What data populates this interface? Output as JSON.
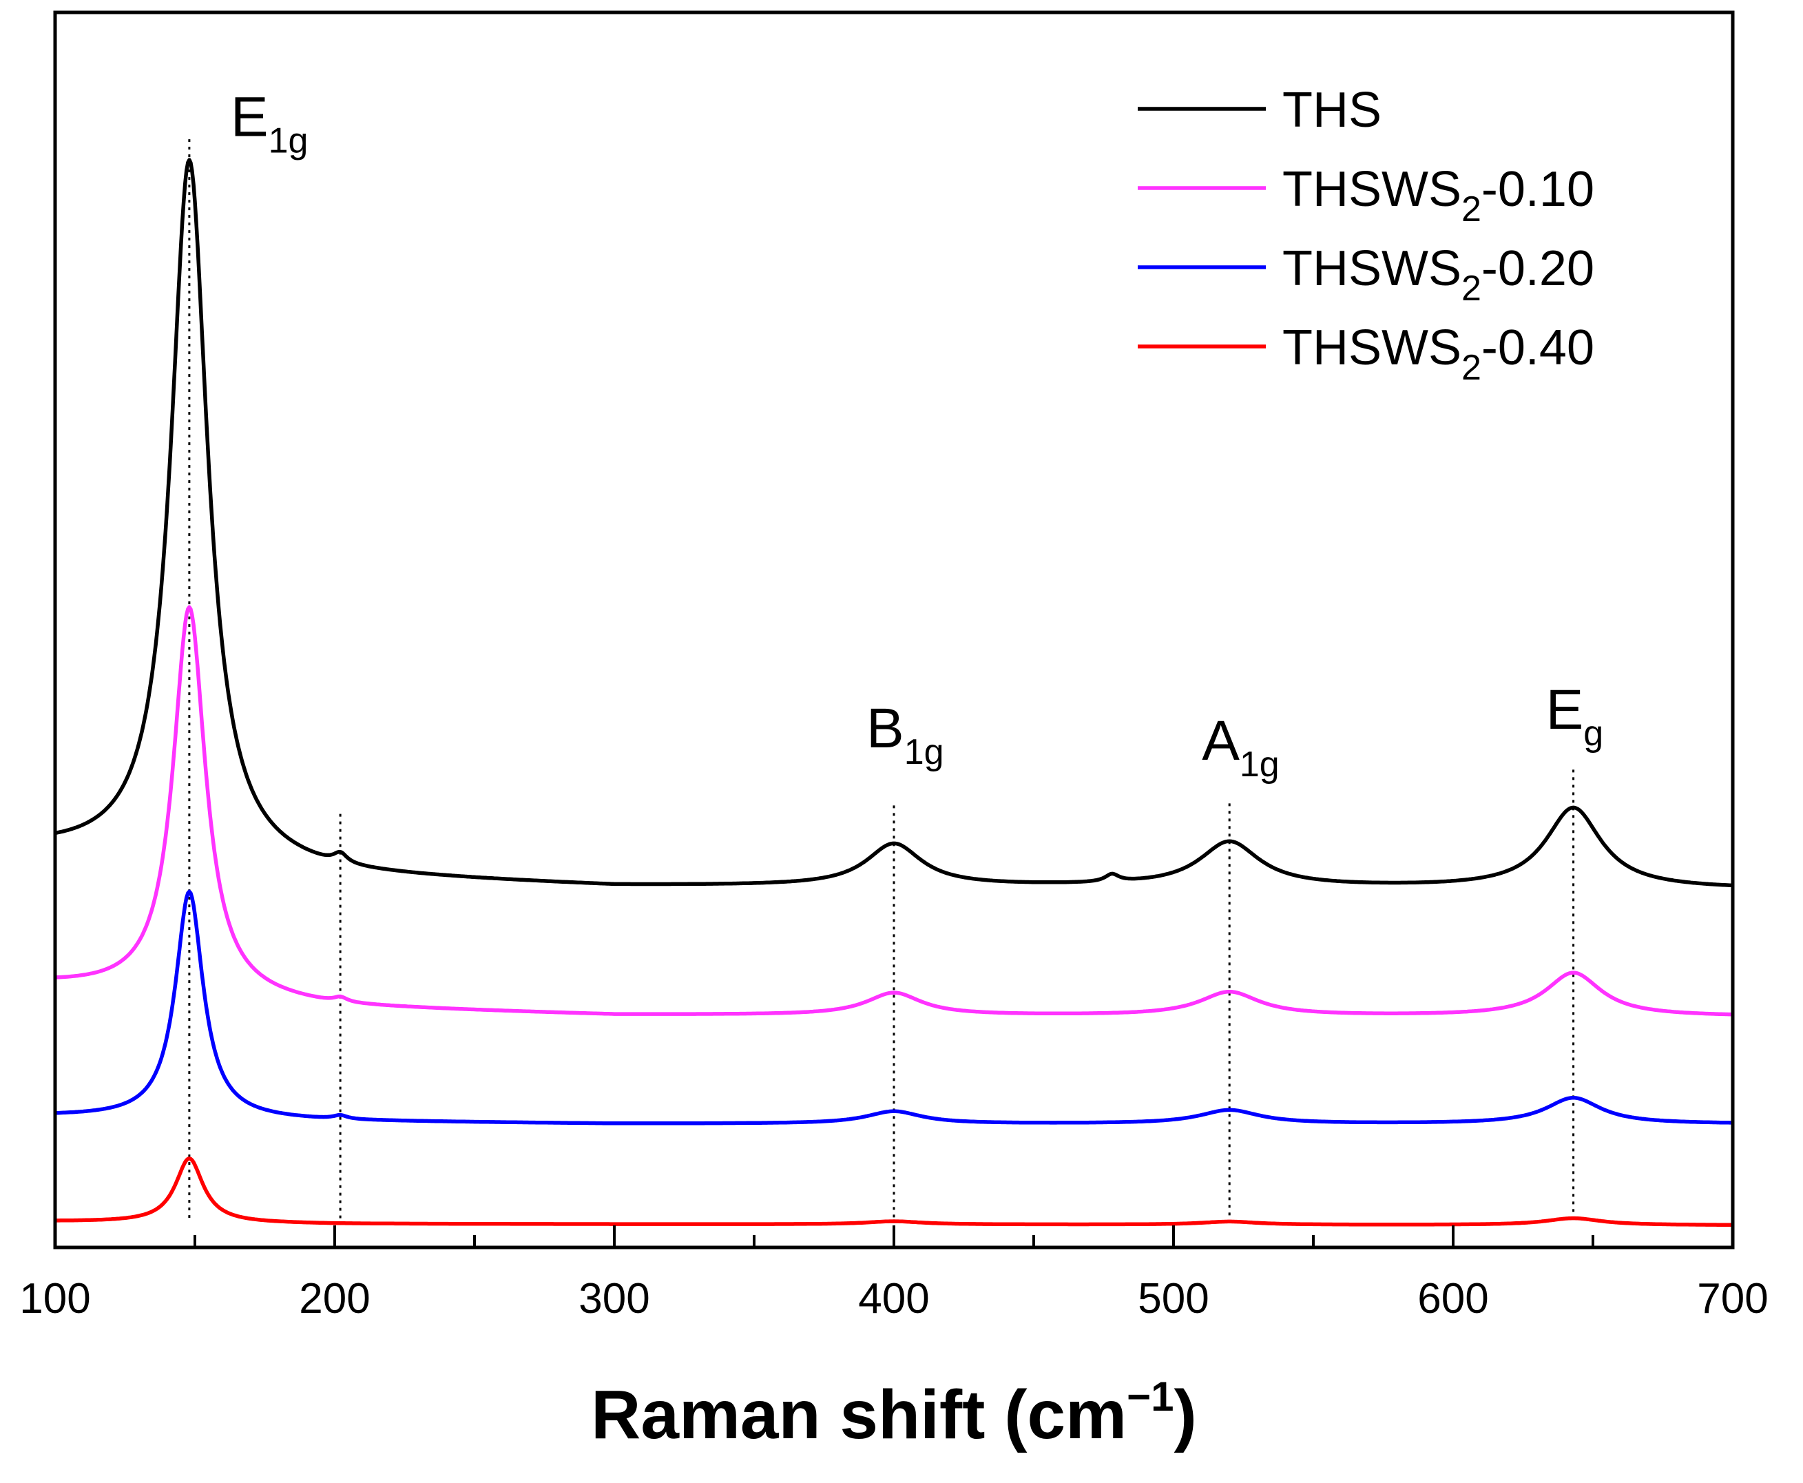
{
  "chart_data": {
    "type": "line",
    "title": "",
    "xlabel_main": "Raman shift (cm",
    "xlabel_sup": "−1",
    "xlabel_close": ")",
    "ylabel": "",
    "xlim": [
      100,
      700
    ],
    "ylim": [
      0,
      100
    ],
    "x_ticks": [
      100,
      200,
      300,
      400,
      500,
      600,
      700
    ],
    "x_tick_labels": [
      "100",
      "200",
      "300",
      "400",
      "500",
      "600",
      "700"
    ],
    "legend_position": "top-right",
    "series": [
      {
        "name": "THS",
        "label_main": "THS",
        "label_sub": "",
        "label_tail": "",
        "color": "#000000",
        "baseline": [
          [
            100,
            32.0
          ],
          [
            200,
            30.0
          ],
          [
            300,
            29.2
          ],
          [
            480,
            29.2
          ],
          [
            700,
            29.0
          ]
        ],
        "peaks": [
          [
            148,
            57.0,
            8
          ],
          [
            202,
            0.8,
            3
          ],
          [
            400,
            3.4,
            12
          ],
          [
            478,
            0.6,
            3
          ],
          [
            520,
            3.6,
            13
          ],
          [
            643,
            6.5,
            12
          ]
        ]
      },
      {
        "name": "THSWS2-0.10",
        "label_main": "THSWS",
        "label_sub": "2",
        "label_tail": "-0.10",
        "color": "#ff33ff",
        "baseline": [
          [
            100,
            21.2
          ],
          [
            200,
            19.4
          ],
          [
            300,
            18.8
          ],
          [
            700,
            18.7
          ]
        ],
        "peaks": [
          [
            148,
            31.5,
            7
          ],
          [
            202,
            0.4,
            3
          ],
          [
            400,
            1.8,
            12
          ],
          [
            520,
            1.9,
            13
          ],
          [
            643,
            3.5,
            12
          ]
        ]
      },
      {
        "name": "THSWS2-0.20",
        "label_main": "THSWS",
        "label_sub": "2",
        "label_tail": "-0.20",
        "color": "#0000ff",
        "baseline": [
          [
            100,
            10.6
          ],
          [
            200,
            10.2
          ],
          [
            300,
            10.0
          ],
          [
            700,
            10.0
          ]
        ],
        "peaks": [
          [
            148,
            18.4,
            6
          ],
          [
            202,
            0.3,
            3
          ],
          [
            400,
            1.0,
            12
          ],
          [
            520,
            1.1,
            13
          ],
          [
            643,
            2.1,
            12
          ]
        ]
      },
      {
        "name": "THSWS2-0.40",
        "label_main": "THSWS",
        "label_sub": "2",
        "label_tail": "-0.40",
        "color": "#ff0000",
        "baseline": [
          [
            100,
            2.1
          ],
          [
            200,
            1.9
          ],
          [
            700,
            1.8
          ]
        ],
        "peaks": [
          [
            148,
            5.2,
            6
          ],
          [
            400,
            0.25,
            12
          ],
          [
            520,
            0.25,
            12
          ],
          [
            643,
            0.55,
            12
          ]
        ]
      }
    ],
    "reference_lines": [
      148,
      202,
      400,
      520,
      643
    ],
    "peak_labels": [
      {
        "name": "E1g",
        "main": "E",
        "sub": "1g",
        "x": 148,
        "y": 90.0
      },
      {
        "name": "B1g",
        "main": "B",
        "sub": "1g",
        "x": 400,
        "y": 40.5
      },
      {
        "name": "A1g",
        "main": "A",
        "sub": "1g",
        "x": 520,
        "y": 39.5
      },
      {
        "name": "Eg",
        "main": "E",
        "sub": "g",
        "x": 643,
        "y": 42.0
      }
    ]
  }
}
